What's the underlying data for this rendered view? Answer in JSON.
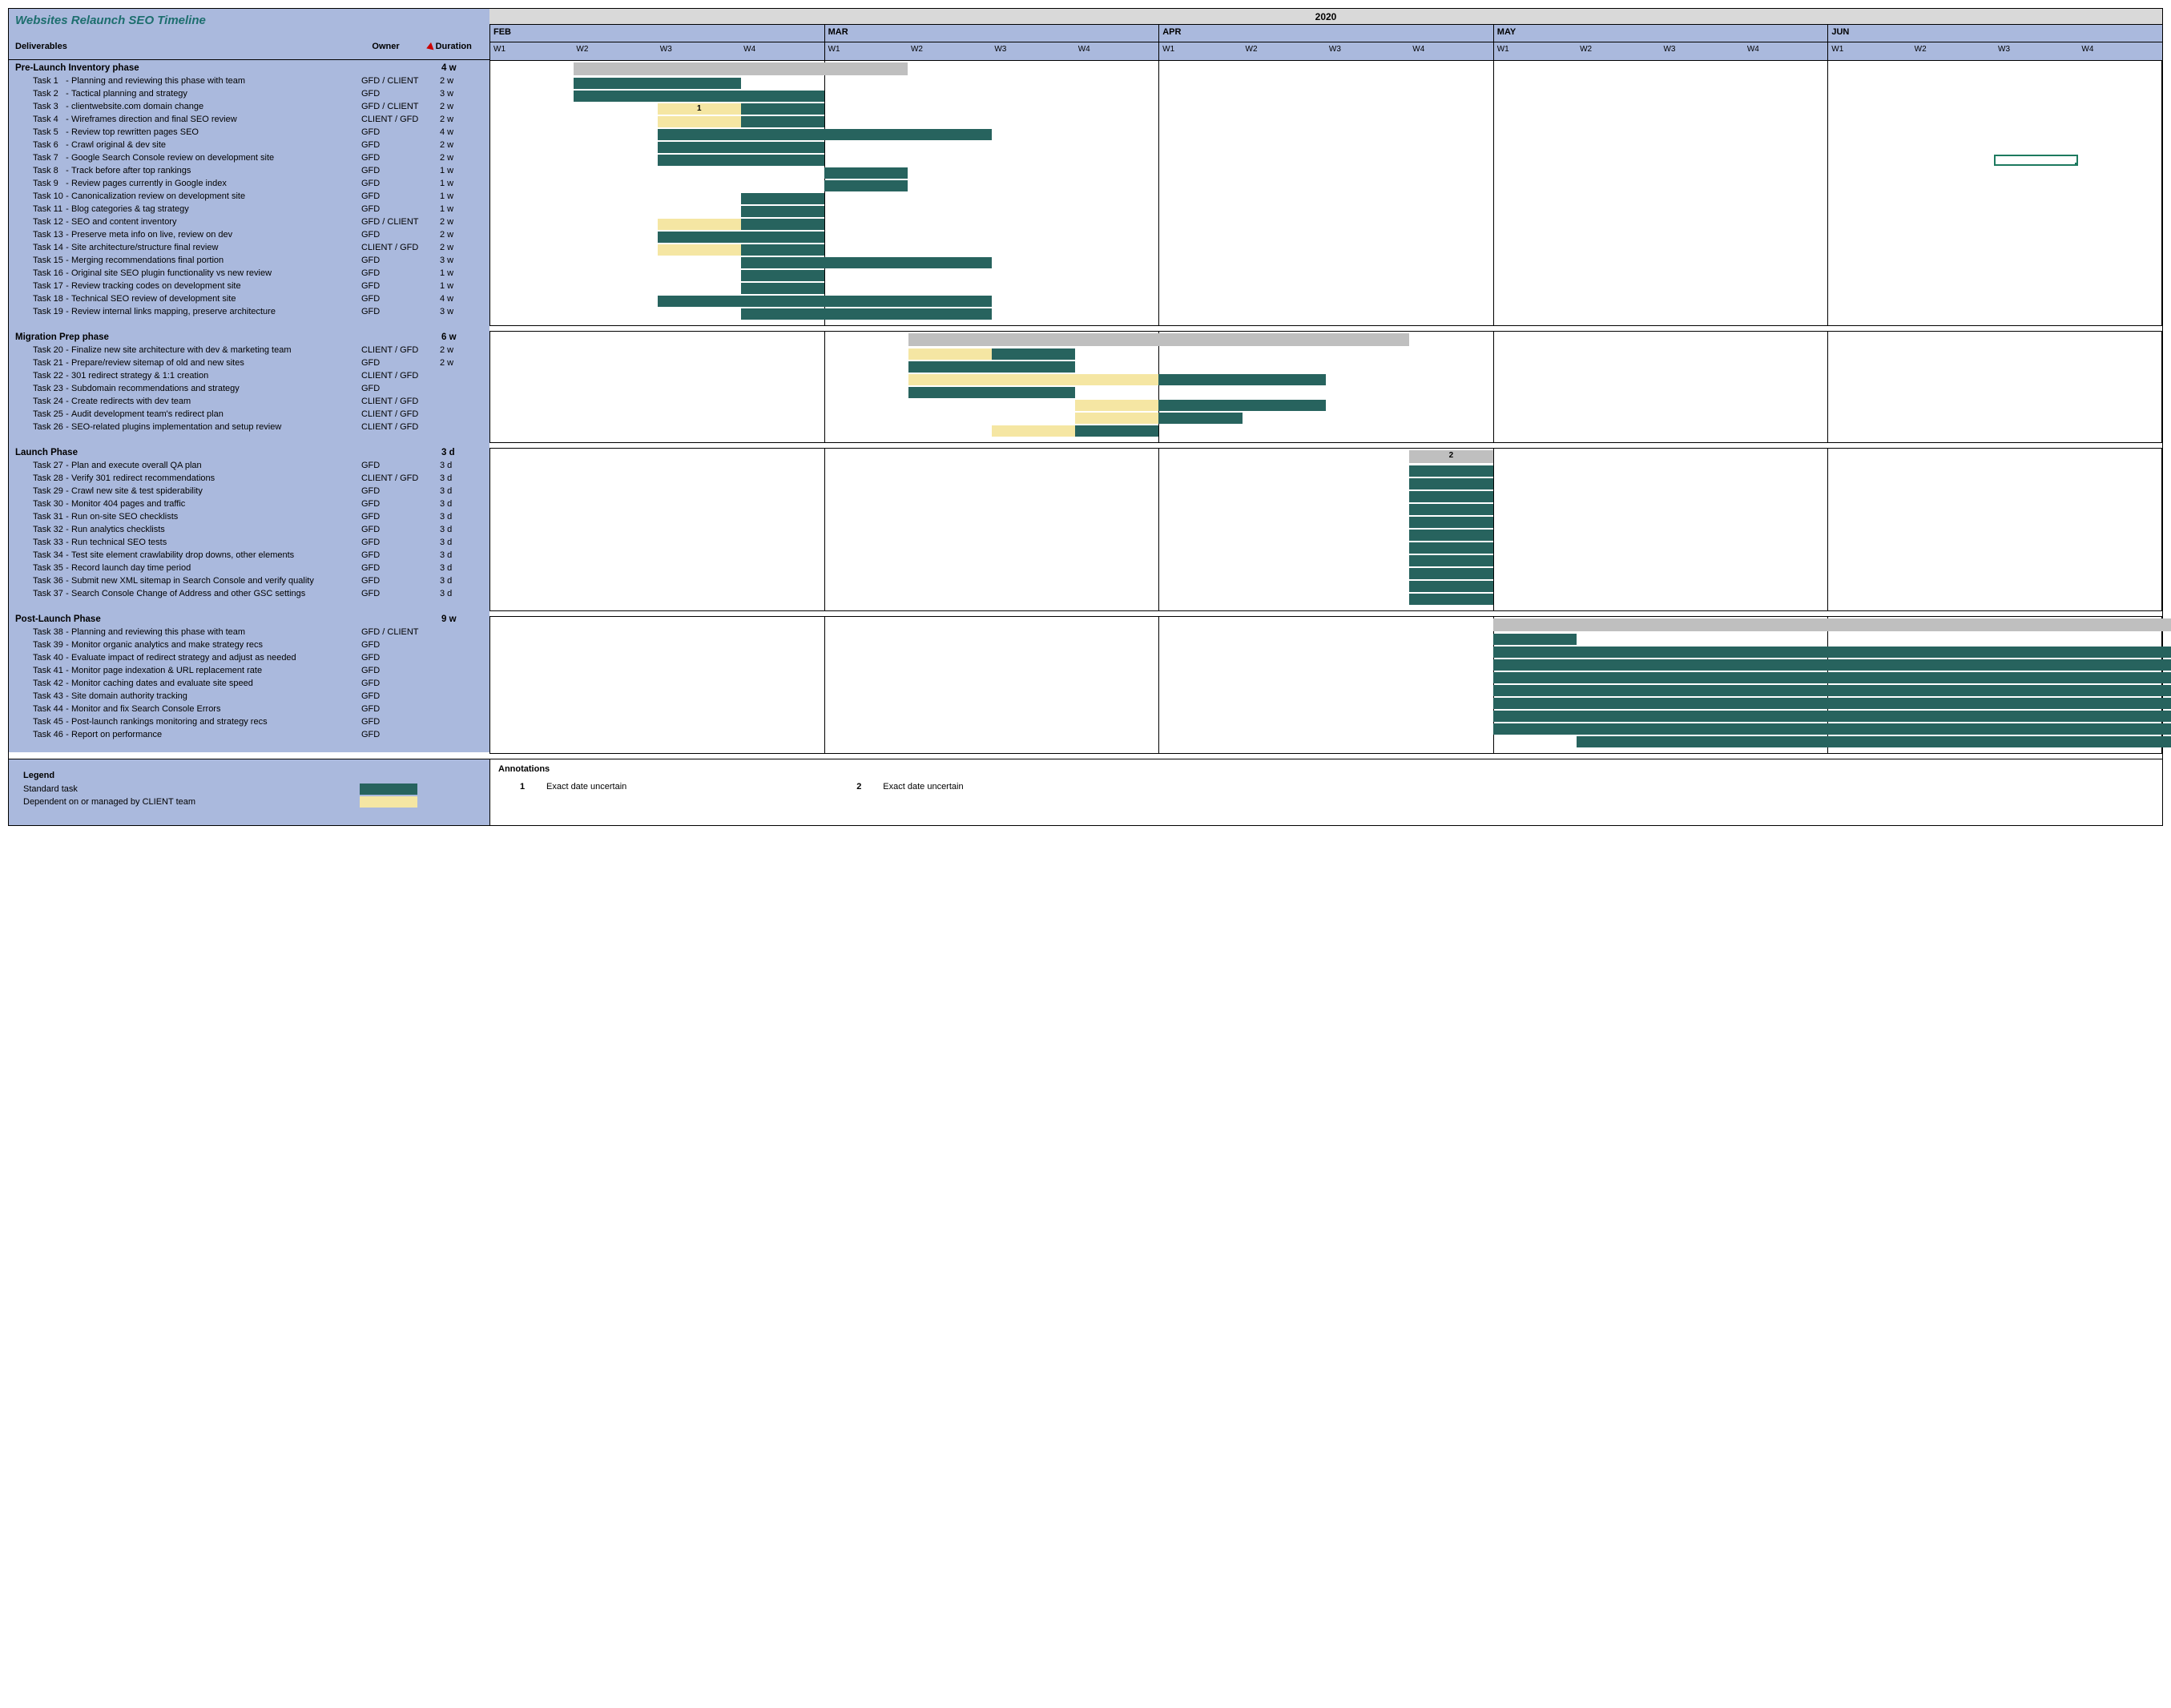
{
  "title": "Websites Relaunch SEO Timeline",
  "columns": {
    "deliverables": "Deliverables",
    "owner": "Owner",
    "duration": "Duration"
  },
  "year": "2020",
  "months": [
    {
      "label": "FEB",
      "weeks": 4
    },
    {
      "label": "MAR",
      "weeks": 4
    },
    {
      "label": "APR",
      "weeks": 4
    },
    {
      "label": "MAY",
      "weeks": 4
    },
    {
      "label": "JUN",
      "weeks": 4
    }
  ],
  "week_labels": [
    "W1",
    "W2",
    "W3",
    "W4"
  ],
  "total_weeks": 20,
  "colors": {
    "task": "#27635e",
    "client": "#f5e6a3",
    "phase_bar": "#bfbfbf",
    "left_bg": "#aab9dd",
    "border": "#000000"
  },
  "marker": {
    "phase_index": 0,
    "row_index": 6,
    "start": 18,
    "span": 1
  },
  "phases": [
    {
      "name": "Pre-Launch Inventory phase",
      "duration": "4 w",
      "bar": {
        "start": 1,
        "span": 4,
        "color": "#bfbfbf"
      },
      "tasks": [
        {
          "n": "Task 1",
          "desc": "Planning and reviewing this phase with team",
          "owner": "GFD / CLIENT",
          "dur": "2 w",
          "bars": [
            {
              "start": 1,
              "span": 2,
              "color": "#27635e"
            }
          ]
        },
        {
          "n": "Task 2",
          "desc": "Tactical planning and strategy",
          "owner": "GFD",
          "dur": "3 w",
          "bars": [
            {
              "start": 1,
              "span": 3,
              "color": "#27635e"
            }
          ]
        },
        {
          "n": "Task 3",
          "desc": "clientwebsite.com domain change",
          "owner": "GFD / CLIENT",
          "dur": "2 w",
          "bars": [
            {
              "start": 2,
              "span": 1,
              "color": "#f5e6a3",
              "ann": "1"
            },
            {
              "start": 3,
              "span": 1,
              "color": "#27635e"
            }
          ]
        },
        {
          "n": "Task 4",
          "desc": "Wireframes direction and final SEO review",
          "owner": "CLIENT / GFD",
          "dur": "2 w",
          "bars": [
            {
              "start": 2,
              "span": 1,
              "color": "#f5e6a3"
            },
            {
              "start": 3,
              "span": 1,
              "color": "#27635e"
            }
          ]
        },
        {
          "n": "Task 5",
          "desc": "Review top rewritten pages SEO",
          "owner": "GFD",
          "dur": "4 w",
          "bars": [
            {
              "start": 2,
              "span": 4,
              "color": "#27635e"
            }
          ]
        },
        {
          "n": "Task 6",
          "desc": "Crawl original & dev site",
          "owner": "GFD",
          "dur": "2 w",
          "bars": [
            {
              "start": 2,
              "span": 2,
              "color": "#27635e"
            }
          ]
        },
        {
          "n": "Task 7",
          "desc": "Google Search Console review on development site",
          "owner": "GFD",
          "dur": "2 w",
          "bars": [
            {
              "start": 2,
              "span": 2,
              "color": "#27635e"
            }
          ]
        },
        {
          "n": "Task 8",
          "desc": "Track before after top rankings",
          "owner": "GFD",
          "dur": "1 w",
          "bars": [
            {
              "start": 4,
              "span": 1,
              "color": "#27635e"
            }
          ]
        },
        {
          "n": "Task 9",
          "desc": "Review pages currently in Google index",
          "owner": "GFD",
          "dur": "1 w",
          "bars": [
            {
              "start": 4,
              "span": 1,
              "color": "#27635e"
            }
          ]
        },
        {
          "n": "Task 10",
          "desc": "Canonicalization review on development site",
          "owner": "GFD",
          "dur": "1 w",
          "bars": [
            {
              "start": 3,
              "span": 1,
              "color": "#27635e"
            }
          ]
        },
        {
          "n": "Task 11",
          "desc": "Blog categories & tag strategy",
          "owner": "GFD",
          "dur": "1 w",
          "bars": [
            {
              "start": 3,
              "span": 1,
              "color": "#27635e"
            }
          ]
        },
        {
          "n": "Task 12",
          "desc": "SEO and content inventory",
          "owner": "GFD / CLIENT",
          "dur": "2 w",
          "bars": [
            {
              "start": 2,
              "span": 1,
              "color": "#f5e6a3"
            },
            {
              "start": 3,
              "span": 1,
              "color": "#27635e"
            }
          ]
        },
        {
          "n": "Task 13",
          "desc": "Preserve meta info on live, review on dev",
          "owner": "GFD",
          "dur": "2 w",
          "bars": [
            {
              "start": 2,
              "span": 2,
              "color": "#27635e"
            }
          ]
        },
        {
          "n": "Task 14",
          "desc": "Site architecture/structure final review",
          "owner": "CLIENT / GFD",
          "dur": "2 w",
          "bars": [
            {
              "start": 2,
              "span": 1,
              "color": "#f5e6a3"
            },
            {
              "start": 3,
              "span": 1,
              "color": "#27635e"
            }
          ]
        },
        {
          "n": "Task 15",
          "desc": "Merging recommendations final portion",
          "owner": "GFD",
          "dur": "3 w",
          "bars": [
            {
              "start": 3,
              "span": 3,
              "color": "#27635e"
            }
          ]
        },
        {
          "n": "Task 16",
          "desc": "Original site SEO plugin functionality vs new review",
          "owner": "GFD",
          "dur": "1 w",
          "bars": [
            {
              "start": 3,
              "span": 1,
              "color": "#27635e"
            }
          ]
        },
        {
          "n": "Task 17",
          "desc": "Review tracking codes on development site",
          "owner": "GFD",
          "dur": "1 w",
          "bars": [
            {
              "start": 3,
              "span": 1,
              "color": "#27635e"
            }
          ]
        },
        {
          "n": "Task 18",
          "desc": "Technical SEO review of development site",
          "owner": "GFD",
          "dur": "4 w",
          "bars": [
            {
              "start": 2,
              "span": 4,
              "color": "#27635e"
            }
          ]
        },
        {
          "n": "Task 19",
          "desc": "Review internal links mapping, preserve architecture",
          "owner": "GFD",
          "dur": "3 w",
          "bars": [
            {
              "start": 3,
              "span": 3,
              "color": "#27635e"
            }
          ]
        }
      ]
    },
    {
      "name": "Migration Prep phase",
      "duration": "6 w",
      "bar": {
        "start": 5,
        "span": 6,
        "color": "#bfbfbf"
      },
      "tasks": [
        {
          "n": "Task 20",
          "desc": "Finalize new site architecture with dev & marketing team",
          "owner": "CLIENT / GFD",
          "dur": "2 w",
          "bars": [
            {
              "start": 5,
              "span": 1,
              "color": "#f5e6a3"
            },
            {
              "start": 6,
              "span": 1,
              "color": "#27635e"
            }
          ]
        },
        {
          "n": "Task 21",
          "desc": "Prepare/review sitemap of old and new sites",
          "owner": "GFD",
          "dur": "2 w",
          "bars": [
            {
              "start": 5,
              "span": 2,
              "color": "#27635e"
            }
          ]
        },
        {
          "n": "Task 22",
          "desc": "301 redirect strategy & 1:1 creation",
          "owner": "CLIENT / GFD",
          "dur": "",
          "bars": [
            {
              "start": 5,
              "span": 3,
              "color": "#f5e6a3"
            },
            {
              "start": 8,
              "span": 2,
              "color": "#27635e"
            }
          ]
        },
        {
          "n": "Task 23",
          "desc": "Subdomain recommendations and strategy",
          "owner": "GFD",
          "dur": "",
          "bars": [
            {
              "start": 5,
              "span": 2,
              "color": "#27635e"
            }
          ]
        },
        {
          "n": "Task 24",
          "desc": "Create redirects with dev team",
          "owner": "CLIENT / GFD",
          "dur": "",
          "bars": [
            {
              "start": 7,
              "span": 1,
              "color": "#f5e6a3"
            },
            {
              "start": 8,
              "span": 2,
              "color": "#27635e"
            }
          ]
        },
        {
          "n": "Task 25",
          "desc": "Audit development team's redirect plan",
          "owner": "CLIENT / GFD",
          "dur": "",
          "bars": [
            {
              "start": 7,
              "span": 1,
              "color": "#f5e6a3"
            },
            {
              "start": 8,
              "span": 1,
              "color": "#27635e"
            }
          ]
        },
        {
          "n": "Task 26",
          "desc": "SEO-related plugins implementation and setup review",
          "owner": "CLIENT / GFD",
          "dur": "",
          "bars": [
            {
              "start": 6,
              "span": 1,
              "color": "#f5e6a3"
            },
            {
              "start": 7,
              "span": 1,
              "color": "#27635e"
            }
          ]
        }
      ]
    },
    {
      "name": "Launch Phase",
      "duration": "3 d",
      "bar": {
        "start": 11,
        "span": 1,
        "color": "#bfbfbf",
        "ann": "2"
      },
      "tasks": [
        {
          "n": "Task 27",
          "desc": "Plan and execute overall QA plan",
          "owner": "GFD",
          "dur": "3 d",
          "bars": [
            {
              "start": 11,
              "span": 1,
              "color": "#27635e"
            }
          ]
        },
        {
          "n": "Task 28",
          "desc": "Verify 301 redirect recommendations",
          "owner": "CLIENT / GFD",
          "dur": "3 d",
          "bars": [
            {
              "start": 11,
              "span": 1,
              "color": "#27635e"
            }
          ]
        },
        {
          "n": "Task 29",
          "desc": "Crawl new site & test spiderability",
          "owner": "GFD",
          "dur": "3 d",
          "bars": [
            {
              "start": 11,
              "span": 1,
              "color": "#27635e"
            }
          ]
        },
        {
          "n": "Task 30",
          "desc": "Monitor 404 pages and traffic",
          "owner": "GFD",
          "dur": "3 d",
          "bars": [
            {
              "start": 11,
              "span": 1,
              "color": "#27635e"
            }
          ]
        },
        {
          "n": "Task 31",
          "desc": "Run on-site SEO checklists",
          "owner": "GFD",
          "dur": "3 d",
          "bars": [
            {
              "start": 11,
              "span": 1,
              "color": "#27635e"
            }
          ]
        },
        {
          "n": "Task 32",
          "desc": "Run analytics checklists",
          "owner": "GFD",
          "dur": "3 d",
          "bars": [
            {
              "start": 11,
              "span": 1,
              "color": "#27635e"
            }
          ]
        },
        {
          "n": "Task 33",
          "desc": "Run technical SEO tests",
          "owner": "GFD",
          "dur": "3 d",
          "bars": [
            {
              "start": 11,
              "span": 1,
              "color": "#27635e"
            }
          ]
        },
        {
          "n": "Task 34",
          "desc": "Test site element crawlability drop downs, other elements",
          "owner": "GFD",
          "dur": "3 d",
          "bars": [
            {
              "start": 11,
              "span": 1,
              "color": "#27635e"
            }
          ]
        },
        {
          "n": "Task 35",
          "desc": "Record launch day time period",
          "owner": "GFD",
          "dur": "3 d",
          "bars": [
            {
              "start": 11,
              "span": 1,
              "color": "#27635e"
            }
          ]
        },
        {
          "n": "Task 36",
          "desc": "Submit new XML sitemap in Search Console and verify quality",
          "owner": "GFD",
          "dur": "3 d",
          "bars": [
            {
              "start": 11,
              "span": 1,
              "color": "#27635e"
            }
          ]
        },
        {
          "n": "Task 37",
          "desc": "Search Console Change of Address and other GSC settings",
          "owner": "GFD",
          "dur": "3 d",
          "bars": [
            {
              "start": 11,
              "span": 1,
              "color": "#27635e"
            }
          ]
        }
      ]
    },
    {
      "name": "Post-Launch Phase",
      "duration": "9 w",
      "bar": {
        "start": 12,
        "span": 9,
        "color": "#bfbfbf"
      },
      "tasks": [
        {
          "n": "Task 38",
          "desc": "Planning and reviewing this phase with team",
          "owner": "GFD / CLIENT",
          "dur": "",
          "bars": [
            {
              "start": 12,
              "span": 1,
              "color": "#27635e"
            }
          ]
        },
        {
          "n": "Task 39",
          "desc": "Monitor organic analytics and make strategy recs",
          "owner": "GFD",
          "dur": "",
          "bars": [
            {
              "start": 12,
              "span": 9,
              "color": "#27635e"
            }
          ]
        },
        {
          "n": "Task 40",
          "desc": "Evaluate impact of redirect strategy and adjust as needed",
          "owner": "GFD",
          "dur": "",
          "bars": [
            {
              "start": 12,
              "span": 9,
              "color": "#27635e"
            }
          ]
        },
        {
          "n": "Task 41",
          "desc": "Monitor page indexation & URL replacement rate",
          "owner": "GFD",
          "dur": "",
          "bars": [
            {
              "start": 12,
              "span": 9,
              "color": "#27635e"
            }
          ]
        },
        {
          "n": "Task 42",
          "desc": "Monitor caching dates and evaluate site speed",
          "owner": "GFD",
          "dur": "",
          "bars": [
            {
              "start": 12,
              "span": 9,
              "color": "#27635e"
            }
          ]
        },
        {
          "n": "Task 43",
          "desc": "Site domain authority tracking",
          "owner": "GFD",
          "dur": "",
          "bars": [
            {
              "start": 12,
              "span": 9,
              "color": "#27635e"
            }
          ]
        },
        {
          "n": "Task 44",
          "desc": "Monitor and fix Search Console Errors",
          "owner": "GFD",
          "dur": "",
          "bars": [
            {
              "start": 12,
              "span": 9,
              "color": "#27635e"
            }
          ]
        },
        {
          "n": "Task 45",
          "desc": "Post-launch rankings monitoring and strategy recs",
          "owner": "GFD",
          "dur": "",
          "bars": [
            {
              "start": 12,
              "span": 9,
              "color": "#27635e"
            }
          ]
        },
        {
          "n": "Task 46",
          "desc": "Report on performance",
          "owner": "GFD",
          "dur": "",
          "bars": [
            {
              "start": 13,
              "span": 8,
              "color": "#27635e"
            }
          ]
        }
      ]
    }
  ],
  "legend": {
    "title": "Legend",
    "items": [
      {
        "label": "Standard task",
        "color": "#27635e"
      },
      {
        "label": "Dependent on or managed by CLIENT team",
        "color": "#f5e6a3"
      }
    ]
  },
  "annotations": {
    "title": "Annotations",
    "items": [
      {
        "num": "1",
        "text": "Exact date uncertain"
      },
      {
        "num": "2",
        "text": "Exact date uncertain"
      }
    ]
  }
}
